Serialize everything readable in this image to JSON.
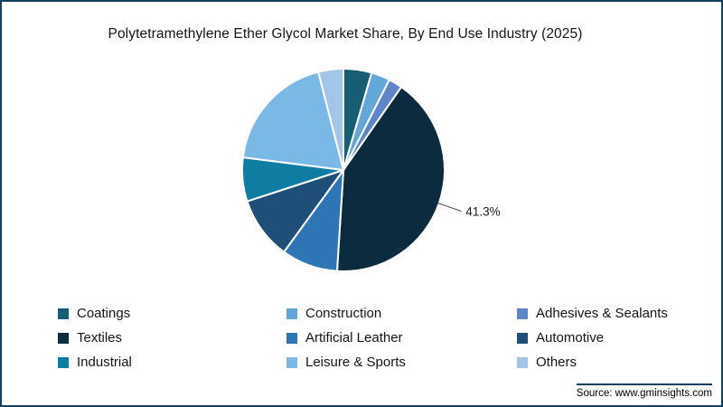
{
  "chart_data": {
    "type": "pie",
    "title": "Polytetramethylene Ether Glycol Market Share, By End Use Industry (2025)",
    "legend_position": "bottom",
    "slices": [
      {
        "label": "Coatings",
        "value": 4.5,
        "color": "#175d73"
      },
      {
        "label": "Construction",
        "value": 3.0,
        "color": "#63a6d8"
      },
      {
        "label": "Adhesives & Sealants",
        "value": 2.2,
        "color": "#5e85c8"
      },
      {
        "label": "Textiles",
        "value": 41.3,
        "color": "#0d2b3e",
        "data_label": "41.3%"
      },
      {
        "label": "Artificial Leather",
        "value": 9.0,
        "color": "#2e75b6"
      },
      {
        "label": "Automotive",
        "value": 10.0,
        "color": "#1f4e79"
      },
      {
        "label": "Industrial",
        "value": 7.0,
        "color": "#0f7ca1"
      },
      {
        "label": "Leisure & Sports",
        "value": 19.0,
        "color": "#7ab8e6"
      },
      {
        "label": "Others",
        "value": 4.0,
        "color": "#a3c6e8"
      }
    ]
  },
  "source": {
    "text": "Source: www.gminsights.com"
  }
}
